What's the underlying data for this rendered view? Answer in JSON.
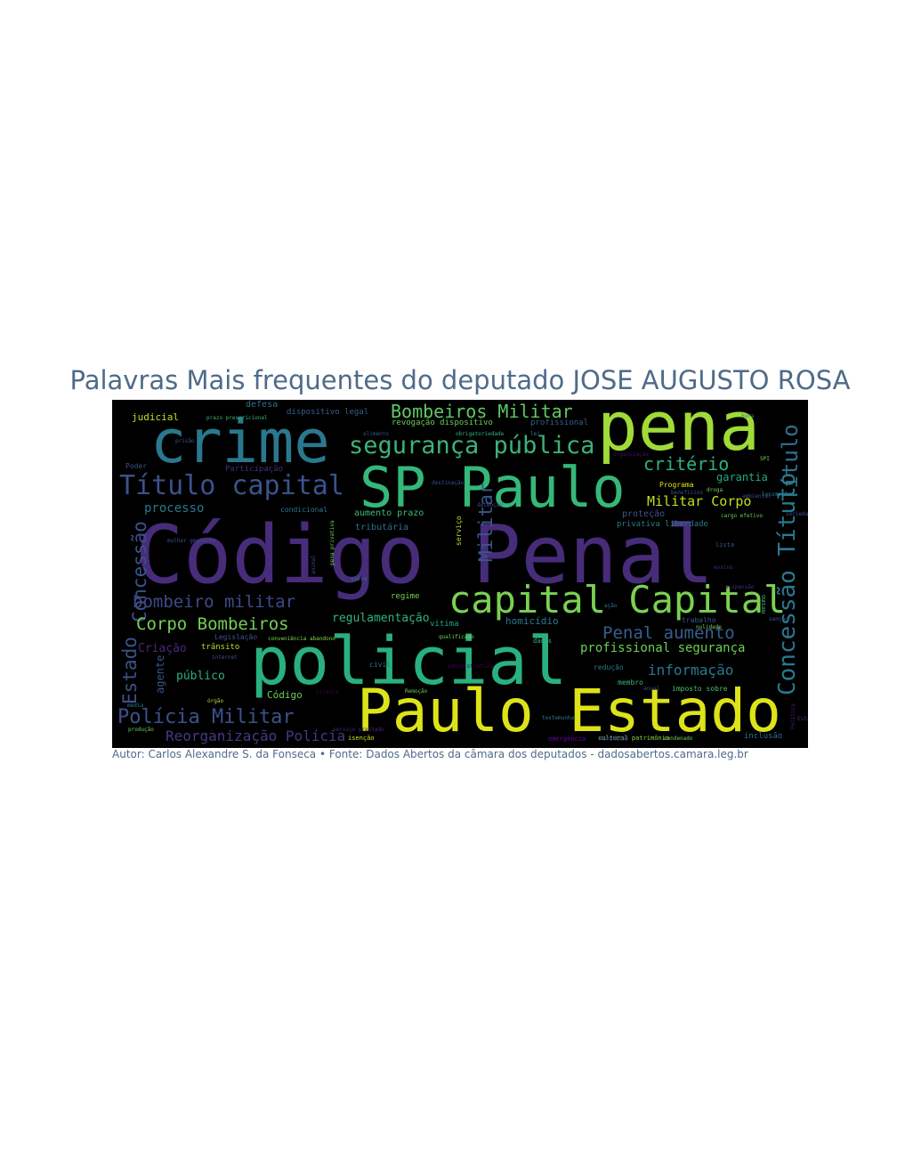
{
  "title": "Palavras Mais frequentes do deputado JOSE AUGUSTO ROSA",
  "caption": "Autor: Carlos Alexandre S. da Fonseca • Fonte: Dados Abertos da câmara dos deputados - dadosabertos.camara.leg.br",
  "words": [
    {
      "text": "Código Penal",
      "color": "#472c7a"
    },
    {
      "text": "policial",
      "color": "#2ab07f"
    },
    {
      "text": "Paulo Estado",
      "color": "#dde318"
    },
    {
      "text": "pena",
      "color": "#a0da39"
    },
    {
      "text": "crime",
      "color": "#2a788e"
    },
    {
      "text": "SP Paulo",
      "color": "#35b779"
    },
    {
      "text": "capital Capital",
      "color": "#7ad151"
    },
    {
      "text": "Título capital",
      "color": "#3b528b"
    },
    {
      "text": "segurança pública",
      "color": "#3eb17a"
    },
    {
      "text": "Bombeiros Militar",
      "color": "#5ec962"
    },
    {
      "text": "critério",
      "color": "#2db27d"
    },
    {
      "text": "Título",
      "color": "#2e6f8e"
    },
    {
      "text": "Concessão Título",
      "color": "#2a788e"
    },
    {
      "text": "Concessão",
      "color": "#3b528b"
    },
    {
      "text": "Estado",
      "color": "#3b528b"
    },
    {
      "text": "Militar",
      "color": "#38588c"
    },
    {
      "text": "bombeiro militar",
      "color": "#3e4a89"
    },
    {
      "text": "Corpo Bombeiros",
      "color": "#75d054"
    },
    {
      "text": "Polícia Militar",
      "color": "#3b528b"
    },
    {
      "text": "Reorganização Polícia",
      "color": "#443983"
    },
    {
      "text": "Penal aumento",
      "color": "#355f8d"
    },
    {
      "text": "profissional segurança",
      "color": "#6ece58"
    },
    {
      "text": "informação",
      "color": "#2a788e"
    },
    {
      "text": "Militar Corpo",
      "color": "#c2df23"
    },
    {
      "text": "garantia",
      "color": "#22a785"
    },
    {
      "text": "processo",
      "color": "#2a788e"
    },
    {
      "text": "regulamentação",
      "color": "#31b57b"
    },
    {
      "text": "homicídio",
      "color": "#2a788e"
    },
    {
      "text": "Criação",
      "color": "#482878"
    },
    {
      "text": "público",
      "color": "#2ab07f"
    },
    {
      "text": "agente",
      "color": "#3b528b"
    },
    {
      "text": "Código",
      "color": "#6ece58"
    },
    {
      "text": "judicial",
      "color": "#c2df23"
    },
    {
      "text": "defesa",
      "color": "#2e6f8e"
    },
    {
      "text": "dispositivo legal",
      "color": "#35608d"
    },
    {
      "text": "revogação dispositivo",
      "color": "#6ece58"
    },
    {
      "text": "profissional",
      "color": "#355f8d"
    },
    {
      "text": "aumento prazo",
      "color": "#3dbc74"
    },
    {
      "text": "tributária",
      "color": "#2c728e"
    },
    {
      "text": "Programa",
      "color": "#e5e419"
    },
    {
      "text": "proteção",
      "color": "#39568c"
    },
    {
      "text": "privativa liberdade",
      "color": "#2a788e"
    },
    {
      "text": "regime",
      "color": "#7ad151"
    },
    {
      "text": "Legislação",
      "color": "#39568c"
    },
    {
      "text": "trânsito",
      "color": "#b5de2b"
    },
    {
      "text": "Poder",
      "color": "#3b528b"
    },
    {
      "text": "Participação",
      "color": "#472d7b"
    },
    {
      "text": "condicional",
      "color": "#2a788e"
    },
    {
      "text": "vítima",
      "color": "#22a884"
    },
    {
      "text": "civil",
      "color": "#2e6f8e"
    },
    {
      "text": "redução",
      "color": "#2a788e"
    },
    {
      "text": "membro",
      "color": "#35b779"
    },
    {
      "text": "imposto sobre",
      "color": "#46c06f"
    },
    {
      "text": "trabalho",
      "color": "#38588c"
    },
    {
      "text": "inclusão",
      "color": "#2e6f8e"
    },
    {
      "text": "cultural patrimônio",
      "color": "#84d44b"
    },
    {
      "text": "serviço",
      "color": "#b8de29"
    },
    {
      "text": "qualificado",
      "color": "#75d054"
    },
    {
      "text": "isenção",
      "color": "#c8e020"
    },
    {
      "text": "conveniência abandono",
      "color": "#84d44b"
    },
    {
      "text": "prazo prescricional",
      "color": "#35b779"
    },
    {
      "text": "prisão",
      "color": "#3b528b"
    },
    {
      "text": "animal",
      "color": "#3e4989"
    },
    {
      "text": "pena privativa",
      "color": "#6ece58"
    },
    {
      "text": "lista",
      "color": "#3b528b"
    },
    {
      "text": "ação",
      "color": "#2a788e"
    },
    {
      "text": "droga",
      "color": "#7ad151"
    },
    {
      "text": "sanção",
      "color": "#39568c"
    },
    {
      "text": "tráfico",
      "color": "#482878"
    },
    {
      "text": "dados",
      "color": "#35b779"
    },
    {
      "text": "emergência",
      "color": "#6a00a8"
    },
    {
      "text": "detenção",
      "color": "#3e4989"
    },
    {
      "text": "mulher gestante",
      "color": "#3b528b"
    },
    {
      "text": "internet",
      "color": "#3b528b"
    },
    {
      "text": "sobre",
      "color": "#2e6f8e"
    },
    {
      "text": "produção",
      "color": "#6ece58"
    },
    {
      "text": "órgão",
      "color": "#b5de2b"
    },
    {
      "text": "licença",
      "color": "#440154"
    },
    {
      "text": "Remoção",
      "color": "#6ece58"
    },
    {
      "text": "administrativa",
      "color": "#440154"
    },
    {
      "text": "testemunha",
      "color": "#2a788e"
    },
    {
      "text": "exercício",
      "color": "#3b528b"
    },
    {
      "text": "organização",
      "color": "#471164"
    },
    {
      "text": "Política",
      "color": "#482173"
    },
    {
      "text": "sociedade",
      "color": "#3b528b"
    },
    {
      "text": "ensino",
      "color": "#482878"
    },
    {
      "text": "SPI",
      "color": "#7ad151"
    },
    {
      "text": "média",
      "color": "#2a788e"
    },
    {
      "text": "anual",
      "color": "#3b528b"
    },
    {
      "text": "mesmo",
      "color": "#35b779"
    },
    {
      "text": "serviço prestado",
      "color": "#482878"
    },
    {
      "text": "condenado",
      "color": "#6ece58"
    },
    {
      "text": "destinação",
      "color": "#3b528b"
    },
    {
      "text": "lei",
      "color": "#2a788e"
    },
    {
      "text": "benefícios",
      "color": "#3b528b"
    },
    {
      "text": "suspensão",
      "color": "#482878"
    },
    {
      "text": "hora",
      "color": "#2a788e"
    },
    {
      "text": "nulidade",
      "color": "#7ad151"
    },
    {
      "text": "alimento",
      "color": "#3b528b"
    },
    {
      "text": "obrigatoriedade",
      "color": "#35b779"
    },
    {
      "text": "cargo efetivo",
      "color": "#6ece58"
    },
    {
      "text": "ambiental",
      "color": "#3b528b"
    },
    {
      "text": "locomoção",
      "color": "#2a788e"
    },
    {
      "text": "Estatuto",
      "color": "#482878"
    }
  ]
}
